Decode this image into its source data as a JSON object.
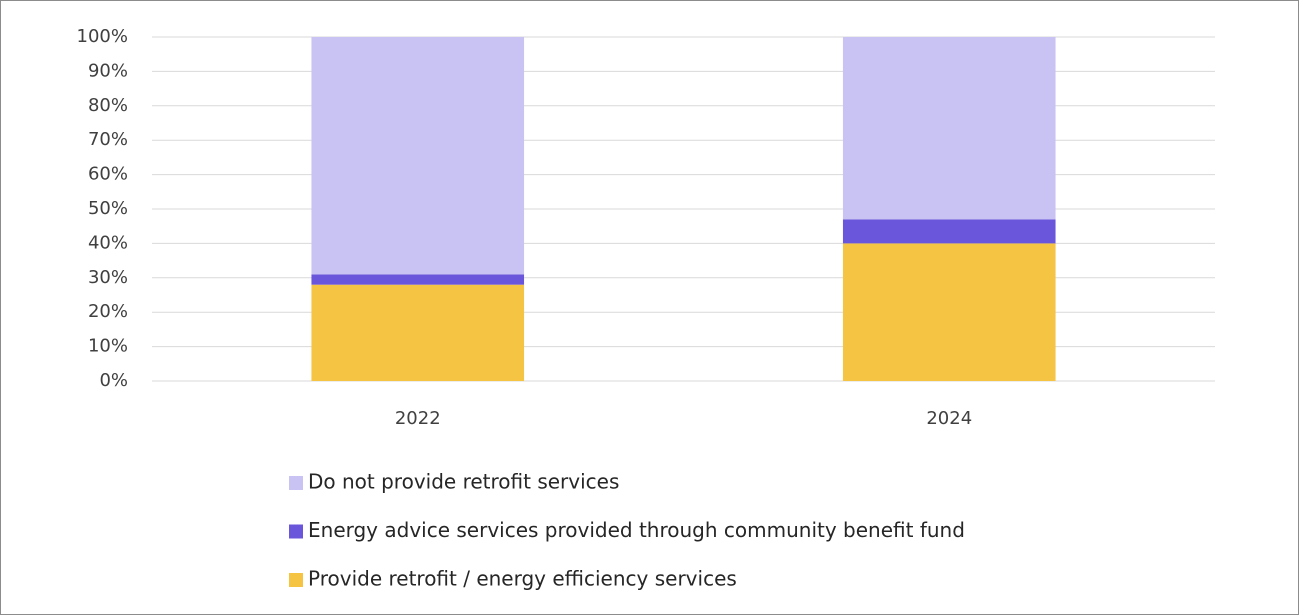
{
  "chart_data": {
    "type": "stacked_bar",
    "categories": [
      "2022",
      "2024"
    ],
    "series": [
      {
        "name": "Provide retrofit / energy efficiency services",
        "color": "#f6c443",
        "values": [
          28,
          40
        ]
      },
      {
        "name": "Energy advice services provided through community benefit fund",
        "color": "#6a56db",
        "values": [
          3,
          7
        ]
      },
      {
        "name": "Do not provide retrofit services",
        "color": "#c9c3f3",
        "values": [
          69,
          53
        ]
      }
    ],
    "ylim": [
      0,
      100
    ],
    "yticks": [
      {
        "value": 0,
        "label": "0%"
      },
      {
        "value": 10,
        "label": "10%"
      },
      {
        "value": 20,
        "label": "20%"
      },
      {
        "value": 30,
        "label": "30%"
      },
      {
        "value": 40,
        "label": "40%"
      },
      {
        "value": 50,
        "label": "50%"
      },
      {
        "value": 60,
        "label": "60%"
      },
      {
        "value": 70,
        "label": "70%"
      },
      {
        "value": 80,
        "label": "80%"
      },
      {
        "value": 90,
        "label": "90%"
      },
      {
        "value": 100,
        "label": "100%"
      }
    ],
    "grid": true,
    "legend": "bottom"
  }
}
